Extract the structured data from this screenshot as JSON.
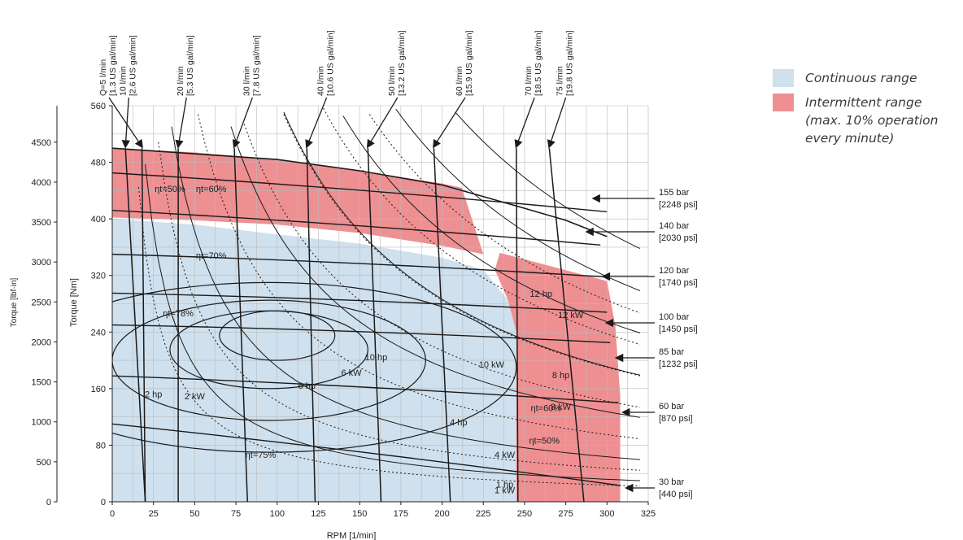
{
  "chart_data": {
    "type": "line",
    "title": "",
    "xlabel": "RPM [1/min]",
    "ylabel": "Torque [Nm]",
    "ylabel2": "Torque [lbf·in]",
    "xlim": [
      0,
      325
    ],
    "ylim": [
      0,
      560
    ],
    "ylim2_lbfin": [
      0,
      4956
    ],
    "x_ticks": [
      "0",
      "25",
      "50",
      "75",
      "100",
      "125",
      "150",
      "175",
      "200",
      "225",
      "250",
      "275",
      "300",
      "325"
    ],
    "y_ticks": [
      "0",
      "80",
      "160",
      "240",
      "320",
      "400",
      "480",
      "560"
    ],
    "y2_ticks": [
      "0",
      "500",
      "1000",
      "1500",
      "2000",
      "2500",
      "3000",
      "3500",
      "4000",
      "4500"
    ],
    "colors": {
      "continuous": "#cfe0ee",
      "intermittent": "#ee8f92",
      "lines": "#1a1a1a"
    },
    "legend": {
      "continuous": "Continuous range",
      "intermittent": "Intermittent range\n(max. 10% operation\nevery minute)"
    },
    "regions": {
      "continuous": [
        [
          0,
          400
        ],
        [
          50,
          392
        ],
        [
          100,
          378
        ],
        [
          150,
          365
        ],
        [
          200,
          345
        ],
        [
          225,
          328
        ],
        [
          240,
          285
        ],
        [
          245,
          240
        ],
        [
          245,
          0
        ],
        [
          0,
          0
        ]
      ],
      "intermittent_upper": [
        [
          0,
          500
        ],
        [
          50,
          494
        ],
        [
          100,
          484
        ],
        [
          150,
          468
        ],
        [
          200,
          450
        ],
        [
          212,
          444
        ],
        [
          225,
          350
        ],
        [
          200,
          362
        ],
        [
          150,
          380
        ],
        [
          100,
          392
        ],
        [
          50,
          398
        ],
        [
          0,
          402
        ]
      ],
      "intermittent_right": [
        [
          235,
          352
        ],
        [
          300,
          312
        ],
        [
          305,
          250
        ],
        [
          308,
          150
        ],
        [
          308,
          0
        ],
        [
          245,
          0
        ],
        [
          245,
          240
        ],
        [
          240,
          285
        ],
        [
          232,
          328
        ]
      ]
    },
    "max_torque_boundary": [
      [
        0,
        500
      ],
      [
        100,
        484
      ],
      [
        150,
        468
      ],
      [
        200,
        448
      ],
      [
        250,
        415
      ],
      [
        275,
        398
      ],
      [
        300,
        375
      ]
    ],
    "flow_lines": [
      {
        "label": "Q=5 l/min",
        "label2": "[1.3 US gal/min]",
        "rpm_hi": 18,
        "rpm_lo": 20,
        "label_x": -2
      },
      {
        "label": "10 l/min",
        "label2": "[2.6 US gal/min]",
        "rpm_hi": 8,
        "rpm_lo": 20,
        "label_x": 10
      },
      {
        "label": "20 l/min",
        "label2": "[5.3 US gal/min]",
        "rpm_hi": 40,
        "rpm_lo": 40,
        "label_x": 45
      },
      {
        "label": "30 l/min",
        "label2": "[7.8 US gal/min]",
        "rpm_hi": 74,
        "rpm_lo": 82,
        "label_x": 85
      },
      {
        "label": "40 l/min",
        "label2": "[10.6 US gal/min]",
        "rpm_hi": 118,
        "rpm_lo": 123,
        "label_x": 130
      },
      {
        "label": "50 l/min",
        "label2": "[13.2 US gal/min]",
        "rpm_hi": 155,
        "rpm_lo": 163,
        "label_x": 173
      },
      {
        "label": "60 l/min",
        "label2": "[15.9 US gal/min]",
        "rpm_hi": 195,
        "rpm_lo": 205,
        "label_x": 214
      },
      {
        "label": "70 l/min",
        "label2": "[18.5 US gal/min]",
        "rpm_hi": 245,
        "rpm_lo": 246,
        "label_x": 256
      },
      {
        "label": "75 l/min",
        "label2": "[19.8 US gal/min]",
        "rpm_hi": 265,
        "rpm_lo": 286,
        "label_x": 275
      }
    ],
    "pressure_lines": [
      {
        "label": "155 bar",
        "label2": "[2248 psi]",
        "torque_at_0": 465,
        "torque_at_end": 410
      },
      {
        "label": "140 bar",
        "label2": "[2030 psi]",
        "torque_at_0": 412,
        "torque_at_end": 363
      },
      {
        "label": "120 bar",
        "label2": "[1740 psi]",
        "torque_at_0": 350,
        "torque_at_end": 318
      },
      {
        "label": "100 bar",
        "label2": "[1450 psi]",
        "torque_at_0": 295,
        "torque_at_end": 268
      },
      {
        "label": "85 bar",
        "label2": "[1232 psi]",
        "torque_at_0": 250,
        "torque_at_end": 225
      },
      {
        "label": "60 bar",
        "label2": "[870 psi]",
        "torque_at_0": 178,
        "torque_at_end": 140
      },
      {
        "label": "30 bar",
        "label2": "[440 psi]",
        "torque_at_0": 110,
        "torque_at_end": 23
      }
    ],
    "power_curves": [
      {
        "label": "1 kW",
        "k": 9549
      },
      {
        "label": "1 hp",
        "k": 7121
      },
      {
        "label": "2 kW",
        "k": 19098
      },
      {
        "label": "2 hp",
        "k": 14242
      },
      {
        "label": "4 kW",
        "k": 38197
      },
      {
        "label": "4 hp",
        "k": 28484
      },
      {
        "label": "6 kW",
        "k": 57296
      },
      {
        "label": "6 hp",
        "k": 42727
      },
      {
        "label": "8 kW",
        "k": 76394
      },
      {
        "label": "8 hp",
        "k": 56969
      },
      {
        "label": "10 kW",
        "k": 95493
      },
      {
        "label": "10 hp",
        "k": 71211
      },
      {
        "label": "12 kW",
        "k": 114592
      },
      {
        "label": "12 hp",
        "k": 85454
      }
    ],
    "efficiency_labels": [
      "ηt=50%",
      "ηt=60%",
      "ηt=70%",
      "ηt=78%",
      "ηt=75%",
      "ηt=60%",
      "ηt=50%"
    ]
  }
}
